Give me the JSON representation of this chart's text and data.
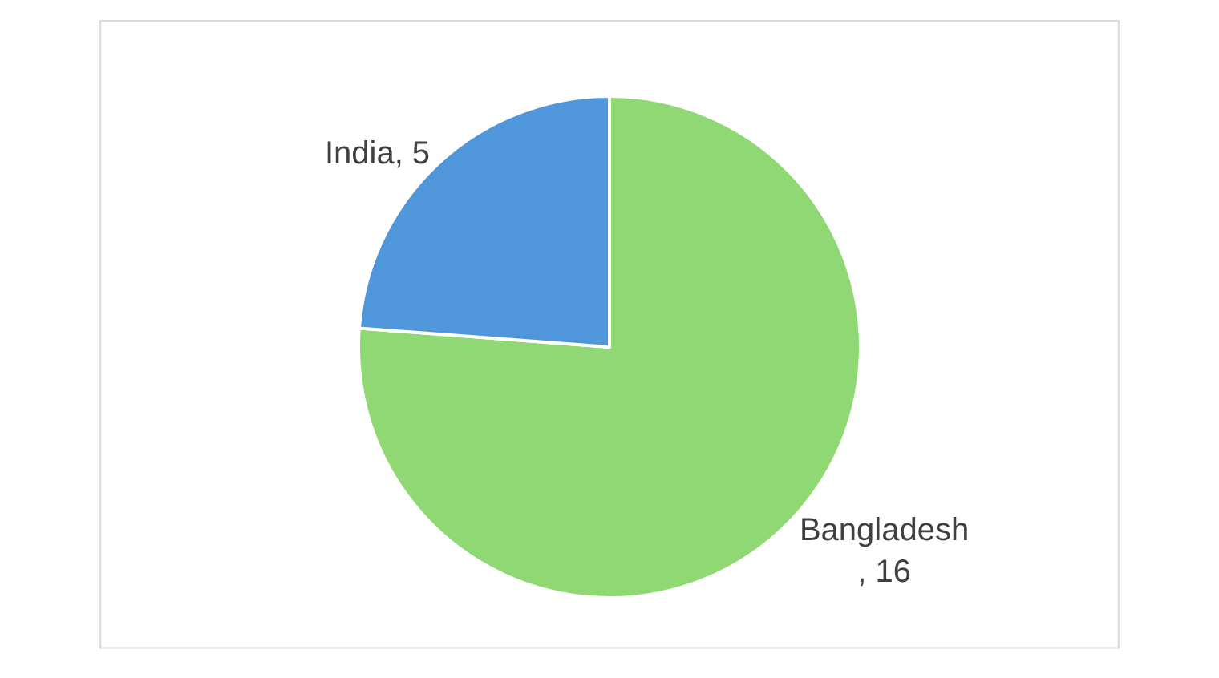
{
  "chart_data": {
    "type": "pie",
    "categories": [
      "Bangladesh",
      "India"
    ],
    "values": [
      16,
      5
    ],
    "colors": [
      "#8fd873",
      "#4f96db"
    ],
    "value_labels": [
      ", 16",
      ", 5"
    ]
  }
}
